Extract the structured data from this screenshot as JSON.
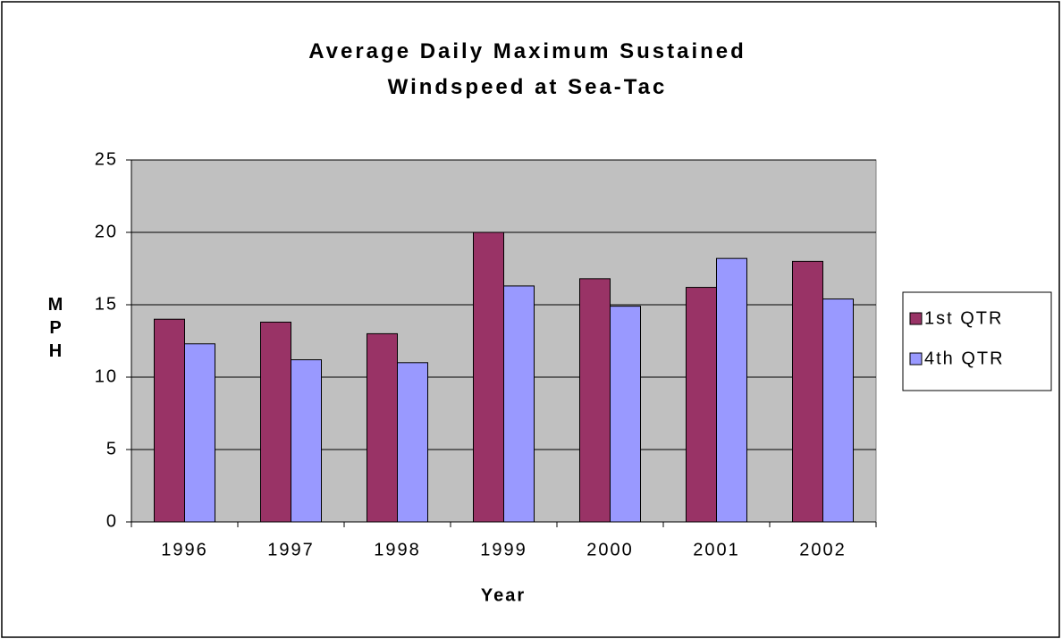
{
  "chart_data": {
    "type": "bar",
    "title": "Average Daily Maximum Sustained Windspeed at Sea-Tac",
    "x_label": "Year",
    "y_label": "MPH",
    "categories": [
      "1996",
      "1997",
      "1998",
      "1999",
      "2000",
      "2001",
      "2002"
    ],
    "series": [
      {
        "name": "1st QTR",
        "color": "#993366",
        "values": [
          14.0,
          13.8,
          13.0,
          20.0,
          16.8,
          16.2,
          18.0
        ]
      },
      {
        "name": "4th QTR",
        "color": "#9999ff",
        "values": [
          12.3,
          11.2,
          11.0,
          16.3,
          14.9,
          18.2,
          15.4
        ]
      }
    ],
    "ylim": [
      0,
      25
    ],
    "yticks": [
      0,
      5,
      10,
      15,
      20,
      25
    ],
    "grid": true,
    "legend": "right"
  }
}
